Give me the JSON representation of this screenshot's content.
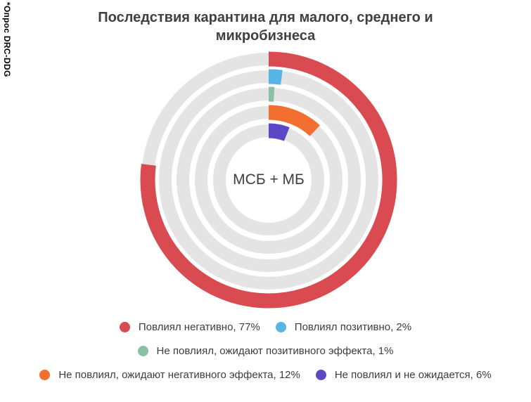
{
  "source_note": "*Опрос DRC-DDG",
  "chart_data": {
    "type": "donut",
    "variant": "multi-ring-concentric",
    "title": "Последствия карантина для малого, среднего и микробизнеса",
    "center_label": "МСБ + МБ",
    "units": "%",
    "start_angle": "12-oclock-clockwise",
    "track_color": "#e4e4e4",
    "series": [
      {
        "label": "Повлиял негативно",
        "value": 77,
        "color": "#d94b51"
      },
      {
        "label": "Повлиял позитивно",
        "value": 2,
        "color": "#57b4e6"
      },
      {
        "label": "Не повлиял, ожидают позитивного эффекта",
        "value": 1,
        "color": "#8bc1a3"
      },
      {
        "label": "Не повлиял, ожидают негативного эффекта",
        "value": 12,
        "color": "#f26e31"
      },
      {
        "label": "Не повлиял и не ожидается",
        "value": 6,
        "color": "#5c48c6"
      }
    ],
    "legend_rows": [
      [
        0,
        1
      ],
      [
        2
      ],
      [
        3,
        4
      ]
    ],
    "legend_label_format": "{label}, {value}%"
  }
}
